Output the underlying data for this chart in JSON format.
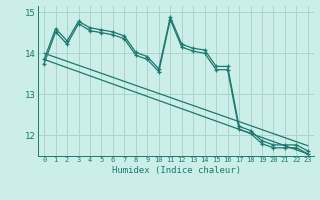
{
  "x": [
    0,
    1,
    2,
    3,
    4,
    5,
    6,
    7,
    8,
    9,
    10,
    11,
    12,
    13,
    14,
    15,
    16,
    17,
    18,
    19,
    20,
    21,
    22,
    23
  ],
  "line1": [
    13.85,
    14.6,
    14.3,
    14.78,
    14.62,
    14.57,
    14.52,
    14.42,
    14.02,
    13.92,
    13.62,
    14.88,
    14.22,
    14.12,
    14.08,
    13.68,
    13.68,
    12.22,
    12.12,
    11.87,
    11.77,
    11.77,
    11.77,
    11.62
  ],
  "line2": [
    13.75,
    14.52,
    14.22,
    14.72,
    14.55,
    14.5,
    14.45,
    14.35,
    13.95,
    13.85,
    13.55,
    14.82,
    14.15,
    14.05,
    14.0,
    13.6,
    13.6,
    12.15,
    12.05,
    11.8,
    11.7,
    11.7,
    11.7,
    11.55
  ],
  "line3_x": [
    0,
    23
  ],
  "line3_y": [
    14.0,
    11.75
  ],
  "line4_x": [
    0,
    23
  ],
  "line4_y": [
    13.85,
    11.55
  ],
  "bg_color": "#cceee8",
  "grid_color": "#aad4cc",
  "line_color": "#1a7a6e",
  "xlabel": "Humidex (Indice chaleur)",
  "ylim": [
    11.5,
    15.15
  ],
  "xlim": [
    -0.5,
    23.5
  ],
  "yticks": [
    12,
    13,
    14,
    15
  ],
  "xtick_labels": [
    "0",
    "1",
    "2",
    "3",
    "4",
    "5",
    "6",
    "7",
    "8",
    "9",
    "10",
    "11",
    "12",
    "13",
    "14",
    "15",
    "16",
    "17",
    "18",
    "19",
    "20",
    "21",
    "22",
    "23"
  ]
}
